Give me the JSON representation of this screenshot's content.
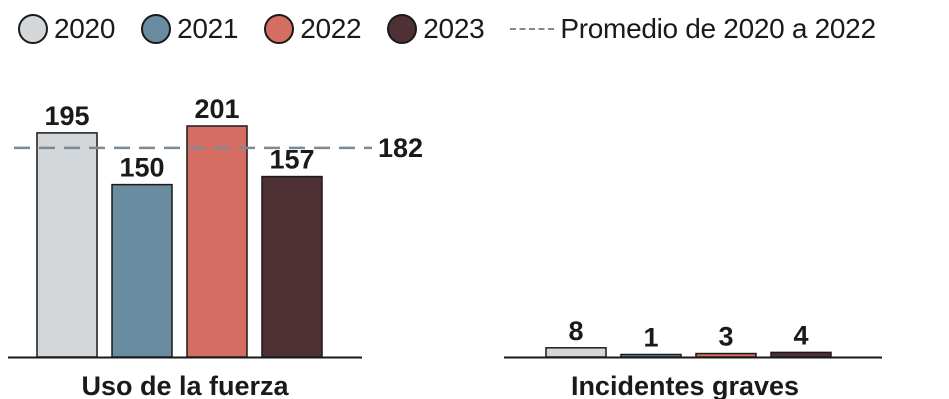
{
  "legend": {
    "items": [
      {
        "label": "2020",
        "color": "#d3d7da"
      },
      {
        "label": "2021",
        "color": "#6a8ca0"
      },
      {
        "label": "2022",
        "color": "#d56e62"
      },
      {
        "label": "2023",
        "color": "#4f3035"
      }
    ],
    "average_label": "Promedio de 2020 a 2022"
  },
  "chart_data": [
    {
      "type": "bar",
      "title": "Uso de la fuerza",
      "categories": [
        "2020",
        "2021",
        "2022",
        "2023"
      ],
      "values": [
        195,
        150,
        201,
        157
      ],
      "colors": [
        "#d3d7da",
        "#6a8ca0",
        "#d56e62",
        "#4f3035"
      ],
      "reference_line": {
        "label": "Promedio de 2020 a 2022",
        "value": 182
      },
      "ylim": [
        0,
        210
      ],
      "grid": false
    },
    {
      "type": "bar",
      "title": "Incidentes graves",
      "categories": [
        "2020",
        "2021",
        "2022",
        "2023"
      ],
      "values": [
        8,
        1,
        3,
        4
      ],
      "colors": [
        "#d3d7da",
        "#6a8ca0",
        "#d56e62",
        "#4f3035"
      ],
      "ylim": [
        0,
        210
      ],
      "grid": false
    }
  ]
}
